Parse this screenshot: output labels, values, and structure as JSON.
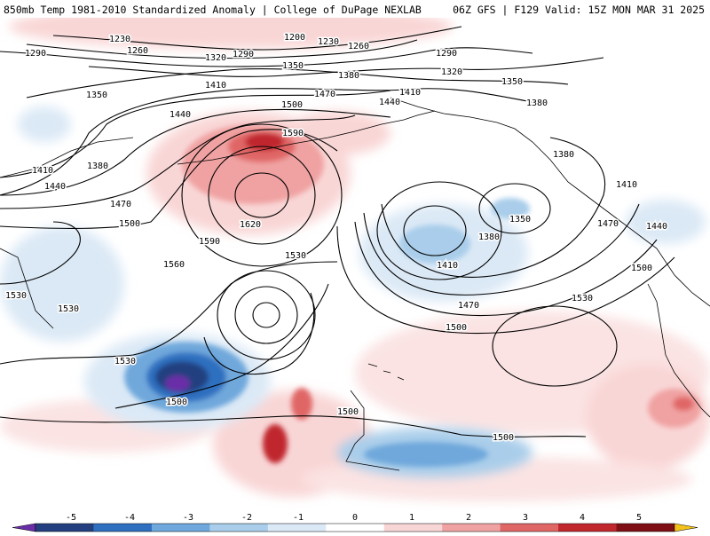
{
  "header": {
    "left_title": "850mb Temp 1981-2010 Standardized Anomaly | College of DuPage NEXLAB",
    "right_title": "06Z GFS | F129 Valid: 15Z MON MAR 31 2025"
  },
  "colorbar": {
    "ticks": [
      "-5",
      "-4",
      "-3",
      "-2",
      "-1",
      "0",
      "1",
      "2",
      "3",
      "4",
      "5"
    ],
    "colors": [
      "#6a2fa8",
      "#243f7f",
      "#2e6fc0",
      "#6fa8dc",
      "#a9cdea",
      "#dbe9f6",
      "#ffffff",
      "#f9d6d6",
      "#f0a2a2",
      "#e06666",
      "#c0272d",
      "#7f0f14",
      "#f2c21b"
    ]
  },
  "map": {
    "contour_labels": [
      "1230",
      "1200",
      "1230",
      "1260",
      "1260",
      "1290",
      "1320",
      "1290",
      "1350",
      "1290",
      "1320",
      "1350",
      "1350",
      "1380",
      "1410",
      "1380",
      "1470",
      "1410",
      "1440",
      "1500",
      "1440",
      "1380",
      "1590",
      "1380",
      "1410",
      "1440",
      "1470",
      "1620",
      "1590",
      "1500",
      "1560",
      "1530",
      "1350",
      "1380",
      "1410",
      "1470",
      "1410",
      "1440",
      "1500",
      "1530",
      "1530",
      "1470",
      "1500",
      "1530",
      "1530",
      "1500",
      "1500",
      "1500"
    ],
    "colors": {
      "contour": "#000000",
      "warm_light": "#f9d6d6",
      "warm_mid": "#f0a2a2",
      "warm_dark": "#e06666",
      "warm_deep": "#c0272d",
      "cold_light": "#dbe9f6",
      "cold_mid": "#a9cdea",
      "cold_strong": "#6fa8dc",
      "cold_deep": "#2e6fc0",
      "cold_darker": "#243f7f",
      "cold_extreme": "#6a2fa8"
    }
  }
}
